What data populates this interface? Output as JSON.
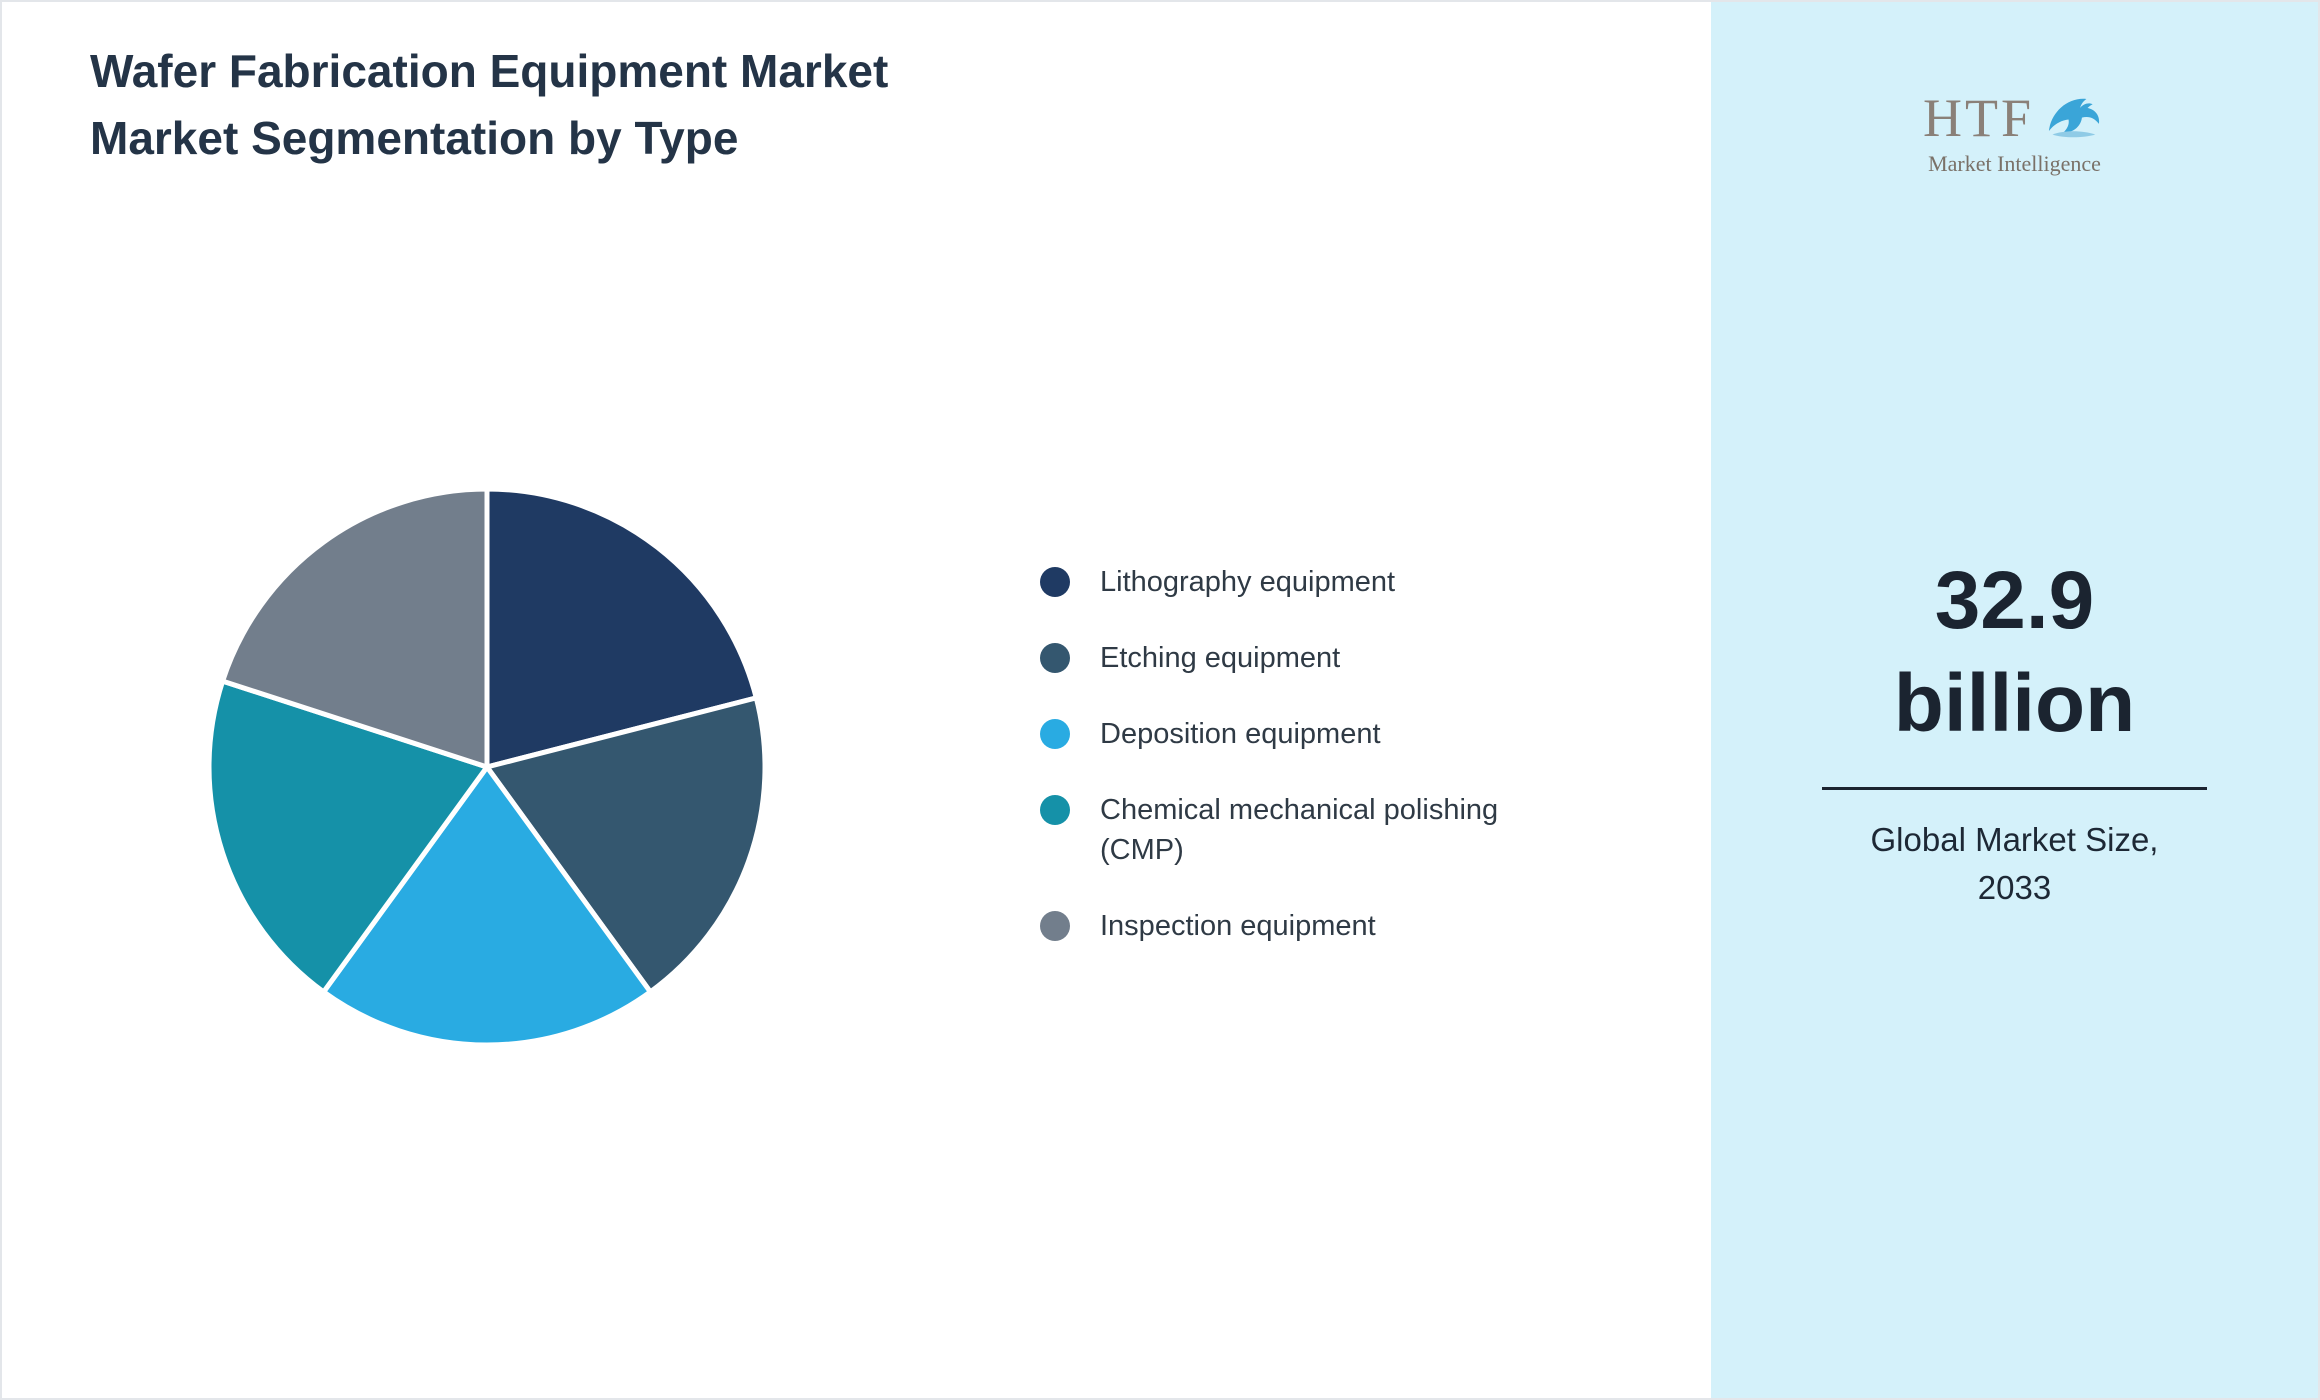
{
  "main": {
    "title": "Wafer Fabrication Equipment Market Market Segmentation by Type"
  },
  "chart_data": {
    "type": "pie",
    "title": "Wafer Fabrication Equipment Market Market Segmentation by Type",
    "labels": [
      "Lithography equipment",
      "Etching equipment",
      "Deposition equipment",
      "Chemical mechanical polishing (CMP)",
      "Inspection equipment"
    ],
    "values": [
      21,
      19,
      20,
      20,
      20
    ],
    "unit": "percent",
    "colors": [
      "#1f3a63",
      "#34576f",
      "#29abe2",
      "#1591a8",
      "#727e8c"
    ],
    "start_angle_deg": 0,
    "direction": "clockwise",
    "legend_position": "right",
    "slice_border_color": "#ffffff"
  },
  "sidebar": {
    "background_color": "#d4f1fa",
    "logo": {
      "brand": "HTF",
      "tagline": "Market Intelligence",
      "icon": "dolphin-icon",
      "icon_color": "#3aa5d8"
    },
    "market_size_value": "32.9 billion",
    "market_size_label": "Global Market Size, 2033"
  }
}
